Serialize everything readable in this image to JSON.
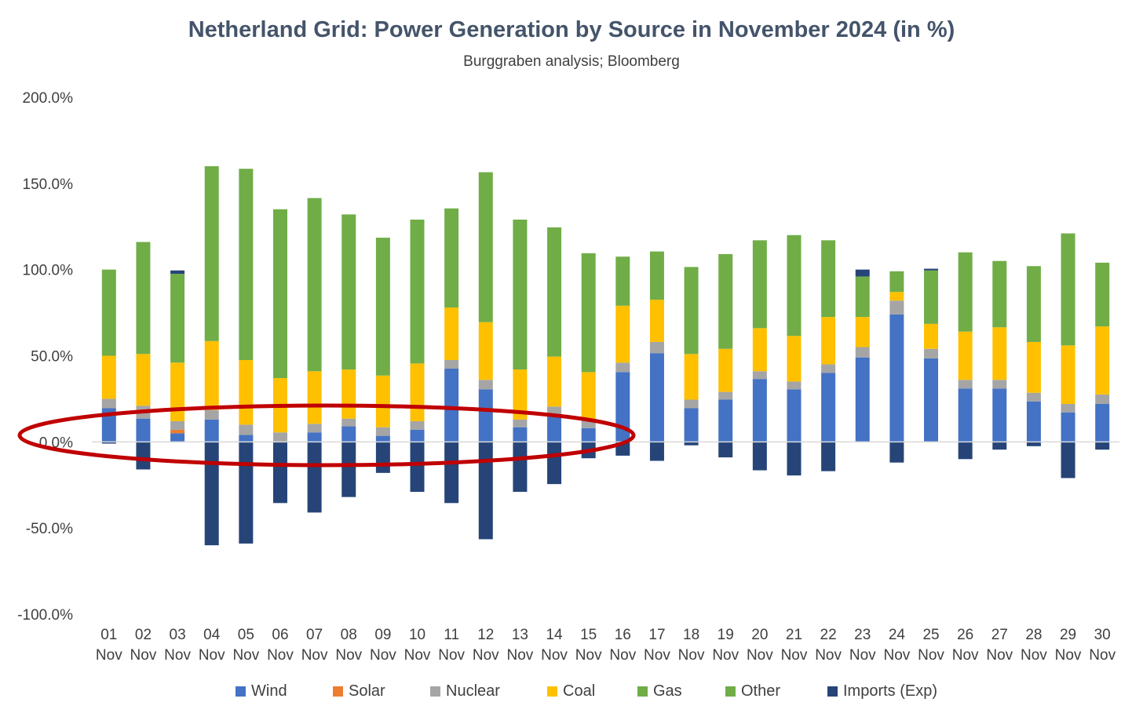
{
  "chart_data": {
    "type": "bar",
    "stacked": true,
    "title": "Netherland Grid: Power Generation by Source in November 2024 (in %)",
    "subtitle": "Burggraben analysis; Bloomberg",
    "xlabel": "",
    "ylabel": "",
    "ylim": [
      -100,
      200
    ],
    "yticks": [
      200,
      150,
      100,
      50,
      0,
      -50,
      -100
    ],
    "ytick_labels": [
      "200.0%",
      "150.0%",
      "100.0%",
      "50.0%",
      "0.0%",
      "-50.0%",
      "-100.0%"
    ],
    "categories": [
      "01 Nov",
      "02 Nov",
      "03 Nov",
      "04 Nov",
      "05 Nov",
      "06 Nov",
      "07 Nov",
      "08 Nov",
      "09 Nov",
      "10 Nov",
      "11 Nov",
      "12 Nov",
      "13 Nov",
      "14 Nov",
      "15 Nov",
      "16 Nov",
      "17 Nov",
      "18 Nov",
      "19 Nov",
      "20 Nov",
      "21 Nov",
      "22 Nov",
      "23 Nov",
      "24 Nov",
      "25 Nov",
      "26 Nov",
      "27 Nov",
      "28 Nov",
      "29 Nov",
      "30 Nov"
    ],
    "x_tick_day": [
      "01",
      "02",
      "03",
      "04",
      "05",
      "06",
      "07",
      "08",
      "09",
      "10",
      "11",
      "12",
      "13",
      "14",
      "15",
      "16",
      "17",
      "18",
      "19",
      "20",
      "21",
      "22",
      "23",
      "24",
      "25",
      "26",
      "27",
      "28",
      "29",
      "30"
    ],
    "x_tick_month": "Nov",
    "series": [
      {
        "name": "Wind",
        "color": "#4472c4",
        "values": [
          19.5,
          13.5,
          5,
          13,
          4,
          0,
          5.5,
          9,
          3.5,
          7,
          42.5,
          30.5,
          8.5,
          15,
          8,
          40.5,
          51.5,
          19.5,
          24.5,
          36.5,
          30.5,
          40,
          49,
          74,
          48.5,
          31,
          31,
          23.5,
          17,
          22
        ]
      },
      {
        "name": "Solar",
        "color": "#ed7d31",
        "values": [
          0,
          0,
          2,
          0,
          0,
          0,
          0,
          0,
          0,
          0,
          0,
          0,
          0,
          0,
          0,
          0,
          0,
          0,
          0,
          0,
          0,
          0,
          0,
          0,
          0,
          0,
          0,
          0,
          0,
          0
        ]
      },
      {
        "name": "Nuclear",
        "color": "#a5a5a5",
        "values": [
          5.5,
          7.5,
          5,
          5.5,
          6,
          5.5,
          5,
          4.5,
          5,
          5,
          5,
          5.5,
          4.5,
          5.5,
          5,
          5.5,
          6.5,
          5,
          4.5,
          4.5,
          4.5,
          5,
          6,
          8,
          5.5,
          5,
          5,
          5,
          5,
          5.5
        ]
      },
      {
        "name": "Coal",
        "color": "#ffc000",
        "values": [
          25,
          30,
          34,
          40,
          37.5,
          31.5,
          30.5,
          28.5,
          30,
          33.5,
          30.5,
          33.5,
          29,
          29,
          27.5,
          33,
          24.5,
          26.5,
          25,
          25,
          26.5,
          27.5,
          17.5,
          5,
          14.5,
          28,
          30.5,
          29.5,
          34,
          39.5
        ]
      },
      {
        "name": "Gas",
        "color": "#70ad47",
        "values": [
          50,
          65,
          51.5,
          101.5,
          111,
          98,
          100.5,
          90,
          80,
          83.5,
          57.5,
          87,
          87,
          75,
          69,
          28.5,
          28,
          50.5,
          55,
          51,
          58.5,
          44.5,
          23.5,
          12,
          31,
          46,
          38.5,
          44,
          65,
          37
        ]
      },
      {
        "name": "Other",
        "color": "#70ad47",
        "values": [
          0,
          0,
          0,
          0,
          0,
          0,
          0,
          0,
          0,
          0,
          0,
          0,
          0,
          0,
          0,
          0,
          0,
          0,
          0,
          0,
          0,
          0,
          0,
          0,
          0,
          0,
          0,
          0,
          0,
          0
        ]
      },
      {
        "name": "Imports (Exp)",
        "color": "#264478",
        "values": [
          -1,
          -16,
          2,
          -60,
          -59,
          -35.5,
          -41,
          -32,
          -18,
          -29,
          -35.5,
          -56.5,
          -29,
          -24.5,
          -9.5,
          -8,
          -11,
          -2,
          -9,
          -16.5,
          -19.5,
          -17,
          4,
          -12,
          1,
          -10,
          -4.5,
          -2.5,
          -21,
          -4.5
        ]
      }
    ],
    "grid": false,
    "legend_position": "bottom",
    "annotation": {
      "type": "ellipse",
      "color": "#c00000"
    }
  }
}
